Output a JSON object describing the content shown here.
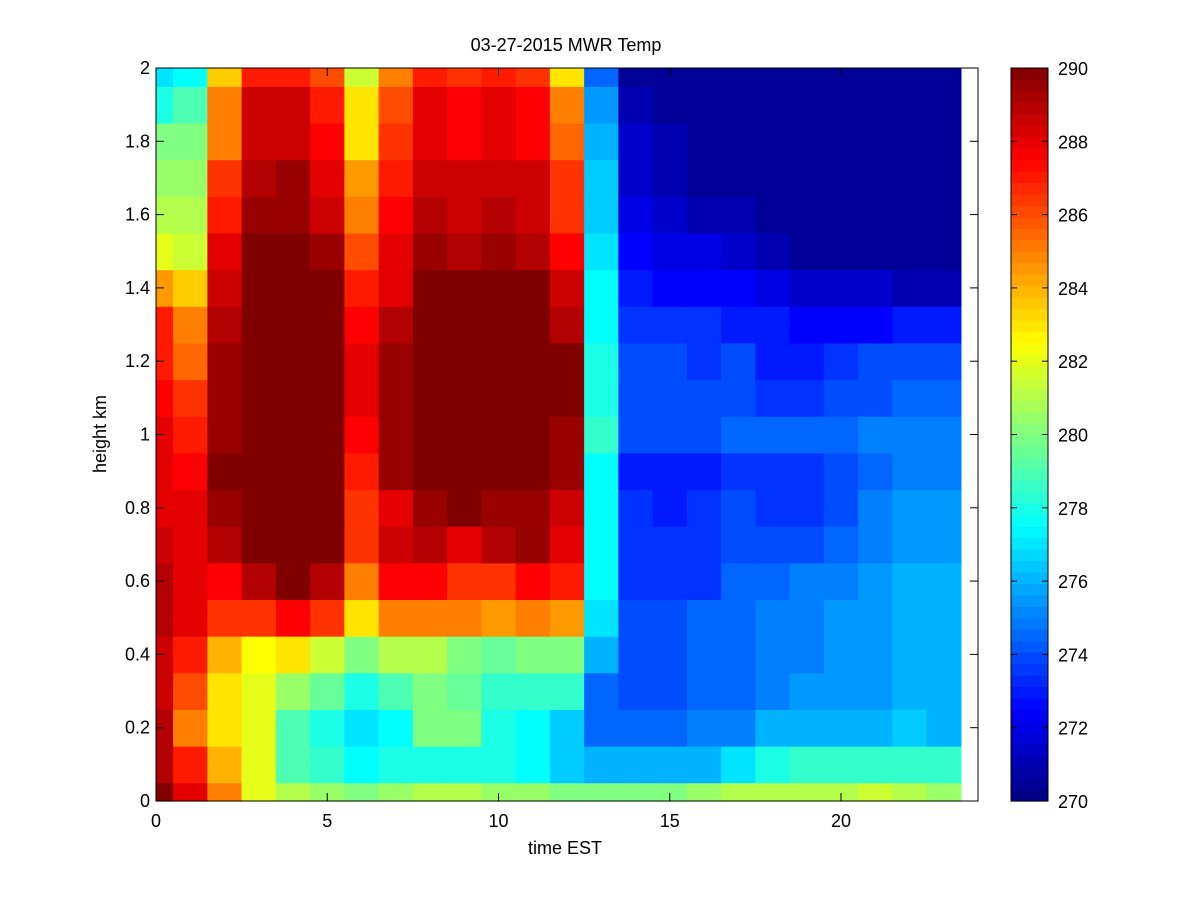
{
  "chart_data": {
    "type": "heatmap",
    "title": "03-27-2015 MWR Temp",
    "xlabel": "time EST",
    "ylabel": "height km",
    "xlim": [
      0,
      24
    ],
    "ylim": [
      0,
      2
    ],
    "xticks": [
      0,
      5,
      10,
      15,
      20
    ],
    "yticks": [
      0,
      0.2,
      0.4,
      0.6,
      0.8,
      1,
      1.2,
      1.4,
      1.6,
      1.8,
      2
    ],
    "x_centers": [
      0,
      1,
      2,
      3,
      4,
      5,
      6,
      7,
      8,
      9,
      10,
      11,
      12,
      13,
      14,
      15,
      16,
      17,
      18,
      19,
      20,
      21,
      22,
      23
    ],
    "y_centers": [
      0,
      0.1,
      0.2,
      0.3,
      0.4,
      0.5,
      0.6,
      0.7,
      0.8,
      0.9,
      1.0,
      1.1,
      1.2,
      1.3,
      1.4,
      1.5,
      1.6,
      1.7,
      1.8,
      1.9,
      2.0
    ],
    "colorbar": {
      "min": 270,
      "max": 290,
      "ticks": [
        270,
        272,
        274,
        276,
        278,
        280,
        282,
        284,
        286,
        288,
        290
      ],
      "colormap": "jet"
    },
    "values": [
      [
        290,
        288,
        285,
        282,
        281,
        280.5,
        280,
        280.5,
        281,
        281,
        280.5,
        280.5,
        280,
        280,
        280,
        280,
        280.5,
        281,
        281,
        281,
        281,
        281.5,
        281,
        280.5
      ],
      [
        289,
        287,
        284,
        282,
        279,
        278.5,
        277.5,
        278,
        278,
        278,
        278,
        277.5,
        276.5,
        276,
        276,
        276,
        276,
        277,
        278,
        278.5,
        278.5,
        278.5,
        278.5,
        278.5
      ],
      [
        289,
        285,
        283,
        282,
        279,
        278,
        277,
        277.5,
        280,
        280,
        278,
        277.5,
        276.5,
        274.5,
        274.5,
        274.5,
        275,
        275,
        276,
        276,
        276,
        276,
        276.5,
        276
      ],
      [
        288.5,
        286,
        283,
        282,
        280.5,
        279.5,
        278,
        279,
        280,
        279.5,
        278.5,
        278.5,
        278.5,
        274.5,
        274,
        274,
        274.5,
        274.5,
        275,
        275.5,
        275.5,
        275.5,
        276,
        276
      ],
      [
        288.5,
        287,
        284,
        282.5,
        283,
        281.5,
        280,
        281,
        281,
        280,
        279.5,
        280,
        280,
        276,
        274,
        274,
        274.5,
        274.5,
        275,
        275,
        275.5,
        275.5,
        276,
        276
      ],
      [
        289,
        288,
        286.5,
        286.5,
        287.5,
        286.5,
        283,
        285,
        285,
        285,
        284.5,
        285,
        284.5,
        277,
        274,
        274,
        274.5,
        274.5,
        275,
        275,
        275.5,
        275.5,
        276,
        276
      ],
      [
        289,
        288,
        287.5,
        289,
        290,
        289,
        285,
        287.5,
        287.5,
        286.5,
        286.5,
        287.5,
        287,
        277.5,
        273.5,
        273.5,
        273.5,
        274.5,
        274.5,
        275,
        275,
        275.5,
        276,
        276
      ],
      [
        288.5,
        288,
        289,
        290,
        290,
        290,
        286.5,
        288.5,
        289,
        288,
        289,
        289.5,
        288,
        277.5,
        273.5,
        273.5,
        273.5,
        274,
        274,
        274,
        274.5,
        275,
        275.5,
        275.5
      ],
      [
        288,
        288,
        289.5,
        290,
        290,
        290,
        286.5,
        288,
        289.5,
        290,
        289.5,
        289.5,
        288.5,
        277.5,
        273.5,
        273,
        273.5,
        274,
        273.5,
        273.5,
        274,
        275,
        275.5,
        275.5
      ],
      [
        288,
        287.5,
        290,
        290,
        290,
        290,
        287,
        289.5,
        290,
        290,
        290,
        290,
        289.5,
        277.5,
        273,
        273,
        273,
        273.5,
        273.5,
        273.5,
        274,
        274.5,
        275,
        275
      ],
      [
        288,
        287,
        289.5,
        290,
        290,
        290,
        287.5,
        289.5,
        290,
        290,
        290,
        290,
        289.5,
        278.5,
        274,
        274,
        274,
        274.5,
        274.5,
        274.5,
        274.5,
        275,
        275,
        275
      ],
      [
        287.5,
        286.5,
        289.5,
        290,
        290,
        290,
        288,
        289.5,
        290,
        290,
        290,
        290,
        290,
        278,
        274,
        274,
        274,
        274,
        273.5,
        273.5,
        274,
        274,
        274.5,
        274.5
      ],
      [
        287,
        285.5,
        289.5,
        290,
        290,
        290,
        288,
        289.5,
        290,
        290,
        290,
        290,
        290,
        278,
        274,
        274,
        273.5,
        274,
        273,
        273,
        273.5,
        274,
        274,
        274
      ],
      [
        287,
        285,
        289,
        290,
        290,
        290,
        287.5,
        289,
        290,
        290,
        290,
        290,
        289,
        277.5,
        273.5,
        273.5,
        273.5,
        273,
        273,
        272.5,
        272.5,
        272.5,
        273,
        273
      ],
      [
        284.5,
        283.5,
        288.5,
        290,
        290,
        290,
        287,
        288,
        290,
        290,
        290,
        290,
        288.5,
        277.5,
        273,
        272.5,
        272.5,
        272.5,
        272,
        271.5,
        271.5,
        271.5,
        271,
        271
      ],
      [
        282,
        281.5,
        288,
        290,
        290,
        289.5,
        286,
        288,
        289.5,
        289,
        289.5,
        289,
        287.5,
        277,
        272.5,
        272,
        272,
        271.5,
        271,
        270.5,
        270.5,
        270.5,
        270.5,
        270.5
      ],
      [
        281,
        281,
        287,
        289.5,
        289.5,
        288.5,
        285,
        287.5,
        289,
        288.5,
        289,
        288.5,
        286.5,
        276.5,
        272,
        271.5,
        271,
        271,
        270.5,
        270.5,
        270.5,
        270.5,
        270.5,
        270.5
      ],
      [
        280.5,
        280.5,
        286.5,
        289,
        289.5,
        288,
        284.5,
        287,
        288.5,
        288.5,
        288.5,
        288.5,
        286.5,
        276.5,
        271.5,
        271,
        270.5,
        270.5,
        270.5,
        270.5,
        270.5,
        270.5,
        270.5,
        270.5
      ],
      [
        280,
        280,
        285,
        288.5,
        288.5,
        287.5,
        283,
        286.5,
        288,
        287.5,
        288,
        287.5,
        285.5,
        276,
        271.5,
        271,
        270.5,
        270.5,
        270.5,
        270.5,
        270.5,
        270.5,
        270.5,
        270.5
      ],
      [
        278,
        279,
        285,
        288.5,
        288.5,
        287,
        283,
        286,
        288,
        287.5,
        288,
        287.5,
        285,
        275.5,
        271,
        270.5,
        270.5,
        270.5,
        270.5,
        270.5,
        270.5,
        270.5,
        270.5,
        270.5
      ],
      [
        277,
        277.5,
        283.5,
        287,
        287,
        286,
        281.5,
        285,
        287,
        286.5,
        287,
        286.5,
        283,
        274.5,
        270.5,
        270.5,
        270.5,
        270.5,
        270.5,
        270.5,
        270.5,
        270.5,
        270.5,
        270.5
      ]
    ]
  }
}
